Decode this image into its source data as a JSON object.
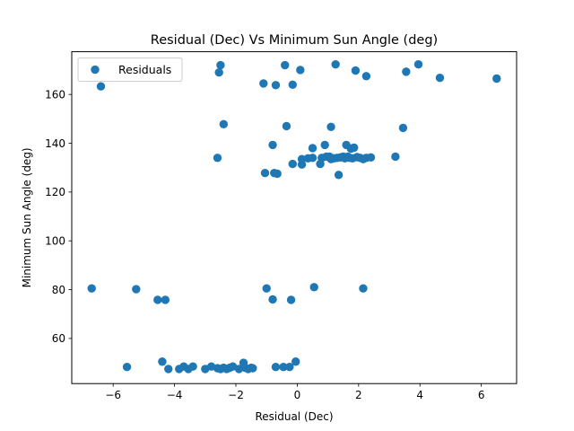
{
  "chart_data": {
    "type": "scatter",
    "title": "Residual (Dec) Vs Minimum Sun Angle (deg)",
    "xlabel": "Residual (Dec)",
    "ylabel": "Minimum Sun Angle (deg)",
    "xlim": [
      -7.35,
      7.15
    ],
    "ylim": [
      41.5,
      177.5
    ],
    "xticks": [
      -6,
      -4,
      -2,
      0,
      2,
      4,
      6
    ],
    "yticks": [
      60,
      80,
      100,
      120,
      140,
      160
    ],
    "grid": false,
    "legend_position": "top-left",
    "series": [
      {
        "name": "Residuals",
        "color": "#1f77b4",
        "points": [
          [
            -6.4,
            163.3
          ],
          [
            -2.5,
            172.0
          ],
          [
            -2.55,
            169.0
          ],
          [
            -0.4,
            172.0
          ],
          [
            0.1,
            170.0
          ],
          [
            1.25,
            172.3
          ],
          [
            1.9,
            169.8
          ],
          [
            2.25,
            167.5
          ],
          [
            3.55,
            169.3
          ],
          [
            3.95,
            172.3
          ],
          [
            4.65,
            166.8
          ],
          [
            6.5,
            166.5
          ],
          [
            -1.1,
            164.5
          ],
          [
            -0.7,
            163.8
          ],
          [
            -0.15,
            164.0
          ],
          [
            -2.4,
            147.8
          ],
          [
            -0.35,
            147.0
          ],
          [
            1.1,
            146.7
          ],
          [
            3.45,
            146.3
          ],
          [
            -2.6,
            134.0
          ],
          [
            -0.8,
            139.3
          ],
          [
            0.5,
            138.0
          ],
          [
            0.9,
            139.3
          ],
          [
            1.6,
            139.3
          ],
          [
            1.85,
            138.2
          ],
          [
            1.75,
            137.8
          ],
          [
            -1.05,
            127.8
          ],
          [
            -0.75,
            127.8
          ],
          [
            -0.65,
            127.5
          ],
          [
            -0.15,
            131.5
          ],
          [
            0.15,
            131.3
          ],
          [
            0.15,
            133.5
          ],
          [
            0.35,
            133.8
          ],
          [
            0.5,
            134.0
          ],
          [
            0.75,
            131.5
          ],
          [
            0.8,
            134.0
          ],
          [
            0.95,
            134.5
          ],
          [
            1.05,
            134.5
          ],
          [
            1.1,
            133.5
          ],
          [
            1.2,
            133.8
          ],
          [
            1.3,
            134.0
          ],
          [
            1.35,
            127.0
          ],
          [
            1.4,
            134.2
          ],
          [
            1.5,
            134.5
          ],
          [
            1.55,
            133.8
          ],
          [
            1.65,
            134.5
          ],
          [
            1.7,
            134.0
          ],
          [
            1.8,
            133.8
          ],
          [
            1.95,
            134.3
          ],
          [
            2.05,
            134.0
          ],
          [
            2.15,
            133.5
          ],
          [
            2.25,
            134.0
          ],
          [
            2.4,
            134.2
          ],
          [
            3.2,
            134.5
          ],
          [
            -6.7,
            80.5
          ],
          [
            -5.25,
            80.2
          ],
          [
            -4.55,
            75.8
          ],
          [
            -4.3,
            75.8
          ],
          [
            -1.0,
            80.5
          ],
          [
            -0.8,
            76.0
          ],
          [
            -0.2,
            75.8
          ],
          [
            0.55,
            81.0
          ],
          [
            2.15,
            80.5
          ],
          [
            -5.55,
            48.3
          ],
          [
            -4.4,
            50.5
          ],
          [
            -4.2,
            47.5
          ],
          [
            -3.85,
            47.5
          ],
          [
            -3.7,
            48.5
          ],
          [
            -3.55,
            47.5
          ],
          [
            -3.4,
            48.5
          ],
          [
            -3.0,
            47.5
          ],
          [
            -2.8,
            48.5
          ],
          [
            -2.6,
            47.8
          ],
          [
            -2.5,
            47.5
          ],
          [
            -2.4,
            48.0
          ],
          [
            -2.3,
            47.5
          ],
          [
            -2.2,
            48.0
          ],
          [
            -2.1,
            48.5
          ],
          [
            -1.9,
            47.5
          ],
          [
            -1.75,
            50.0
          ],
          [
            -1.7,
            48.0
          ],
          [
            -1.6,
            47.5
          ],
          [
            -1.5,
            48.0
          ],
          [
            -1.45,
            47.8
          ],
          [
            -0.7,
            48.3
          ],
          [
            -0.45,
            48.3
          ],
          [
            -0.25,
            48.3
          ],
          [
            -0.05,
            50.5
          ]
        ]
      }
    ]
  }
}
